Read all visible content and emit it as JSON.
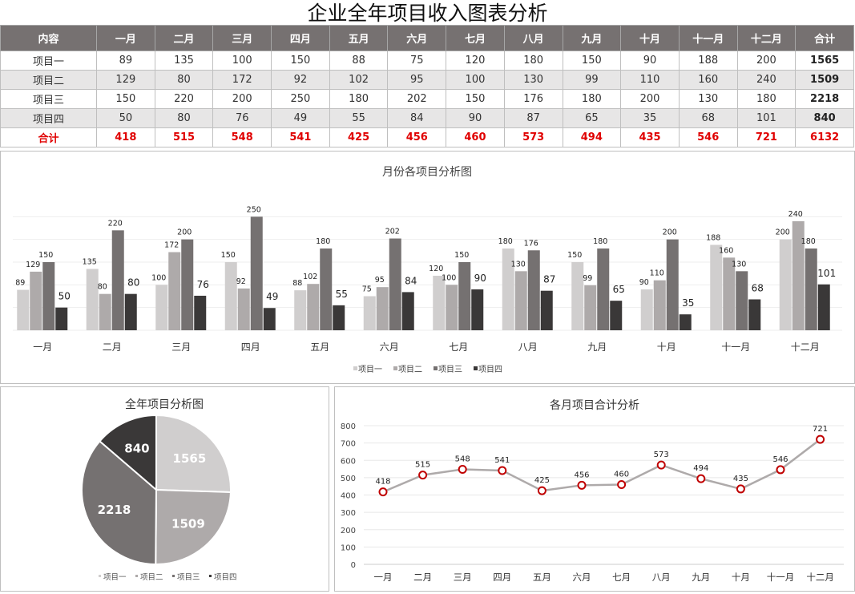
{
  "title": "企业全年项目收入图表分析",
  "table": {
    "headers": [
      "内容",
      "一月",
      "二月",
      "三月",
      "四月",
      "五月",
      "六月",
      "七月",
      "八月",
      "九月",
      "十月",
      "十一月",
      "十二月",
      "合计"
    ],
    "rows": [
      [
        "项目一",
        "89",
        "135",
        "100",
        "150",
        "88",
        "75",
        "120",
        "180",
        "150",
        "90",
        "188",
        "200",
        "1565"
      ],
      [
        "项目二",
        "129",
        "80",
        "172",
        "92",
        "102",
        "95",
        "100",
        "130",
        "99",
        "110",
        "160",
        "240",
        "1509"
      ],
      [
        "项目三",
        "150",
        "220",
        "200",
        "250",
        "180",
        "202",
        "150",
        "176",
        "180",
        "200",
        "130",
        "180",
        "2218"
      ],
      [
        "项目四",
        "50",
        "80",
        "76",
        "49",
        "55",
        "84",
        "90",
        "87",
        "65",
        "35",
        "68",
        "101",
        "840"
      ]
    ],
    "total": [
      "合计",
      "418",
      "515",
      "548",
      "541",
      "425",
      "456",
      "460",
      "573",
      "494",
      "435",
      "546",
      "721",
      "6132"
    ]
  },
  "chart_data": [
    {
      "type": "bar",
      "title": "月份各项目分析图",
      "categories": [
        "一月",
        "二月",
        "三月",
        "四月",
        "五月",
        "六月",
        "七月",
        "八月",
        "九月",
        "十月",
        "十一月",
        "十二月"
      ],
      "series": [
        {
          "name": "项目一",
          "color": "#d0cece",
          "values": [
            89,
            135,
            100,
            150,
            88,
            75,
            120,
            180,
            150,
            90,
            188,
            200
          ]
        },
        {
          "name": "项目二",
          "color": "#aeaaaa",
          "values": [
            129,
            80,
            172,
            92,
            102,
            95,
            100,
            130,
            99,
            110,
            160,
            240
          ]
        },
        {
          "name": "项目三",
          "color": "#757171",
          "values": [
            150,
            220,
            200,
            250,
            180,
            202,
            150,
            176,
            180,
            200,
            130,
            180
          ]
        },
        {
          "name": "项目四",
          "color": "#3a3838",
          "values": [
            50,
            80,
            76,
            49,
            55,
            84,
            90,
            87,
            65,
            35,
            68,
            101
          ]
        }
      ],
      "ylim": [
        0,
        300
      ],
      "grid": true,
      "legend": "bottom"
    },
    {
      "type": "pie",
      "title": "全年项目分析图",
      "labels": [
        "项目一",
        "项目二",
        "项目三",
        "项目四"
      ],
      "values": [
        1565,
        1509,
        2218,
        840
      ],
      "colors": [
        "#d0cece",
        "#aeaaaa",
        "#757171",
        "#3a3838"
      ],
      "legend": "bottom"
    },
    {
      "type": "line",
      "title": "各月项目合计分析",
      "categories": [
        "一月",
        "二月",
        "三月",
        "四月",
        "五月",
        "六月",
        "七月",
        "八月",
        "九月",
        "十月",
        "十一月",
        "十二月"
      ],
      "values": [
        418,
        515,
        548,
        541,
        425,
        456,
        460,
        573,
        494,
        435,
        546,
        721
      ],
      "ylim": [
        0,
        800
      ],
      "yticks": [
        0,
        100,
        200,
        300,
        400,
        500,
        600,
        700,
        800
      ],
      "grid": true,
      "line_color": "#aeaaaa",
      "marker_color": "#c00000"
    }
  ]
}
